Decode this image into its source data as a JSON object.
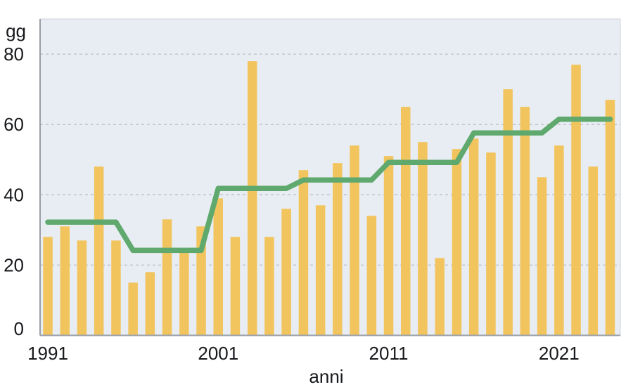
{
  "chart_data": {
    "type": "bar",
    "title": "",
    "xlabel": "anni",
    "ylabel": "gg",
    "x": [
      1991,
      1992,
      1993,
      1994,
      1995,
      1996,
      1997,
      1998,
      1999,
      2000,
      2001,
      2002,
      2003,
      2004,
      2005,
      2006,
      2007,
      2008,
      2009,
      2010,
      2011,
      2012,
      2013,
      2014,
      2015,
      2016,
      2017,
      2018,
      2019,
      2020,
      2021,
      2022,
      2023,
      2024
    ],
    "series": [
      {
        "name": "annual_days_bars",
        "type": "bar",
        "color": "#f2c45e",
        "values": [
          28,
          31,
          27,
          48,
          27,
          15,
          18,
          33,
          24,
          31,
          39,
          28,
          78,
          28,
          36,
          47,
          37,
          49,
          54,
          34,
          51,
          65,
          55,
          22,
          53,
          56,
          52,
          70,
          65,
          45,
          54,
          77,
          48,
          67
        ]
      },
      {
        "name": "period_mean_step_line",
        "type": "step-line",
        "color": "#5fa96e",
        "segments": [
          {
            "from": 1991,
            "to": 1995,
            "value": 32.2
          },
          {
            "from": 1996,
            "to": 2000,
            "value": 24.2
          },
          {
            "from": 2001,
            "to": 2005,
            "value": 41.8
          },
          {
            "from": 2006,
            "to": 2010,
            "value": 44.2
          },
          {
            "from": 2011,
            "to": 2015,
            "value": 49.2
          },
          {
            "from": 2016,
            "to": 2020,
            "value": 57.6
          },
          {
            "from": 2021,
            "to": 2024,
            "value": 61.5
          }
        ]
      }
    ],
    "x_ticks": [
      1991,
      2001,
      2011,
      2021
    ],
    "y_ticks": [
      80,
      60,
      40,
      20,
      0
    ],
    "ylim": [
      0,
      90
    ],
    "grid": "horizontal-dashed",
    "legend": "none",
    "colors": {
      "plot_background": "#e8edf3",
      "plot_border": "#ccd2d8",
      "gridline": "#b5bac1",
      "axis_line": "#989ea4",
      "bar": "#f2c45e",
      "line": "#5fa96e",
      "text": "#17191c"
    }
  }
}
